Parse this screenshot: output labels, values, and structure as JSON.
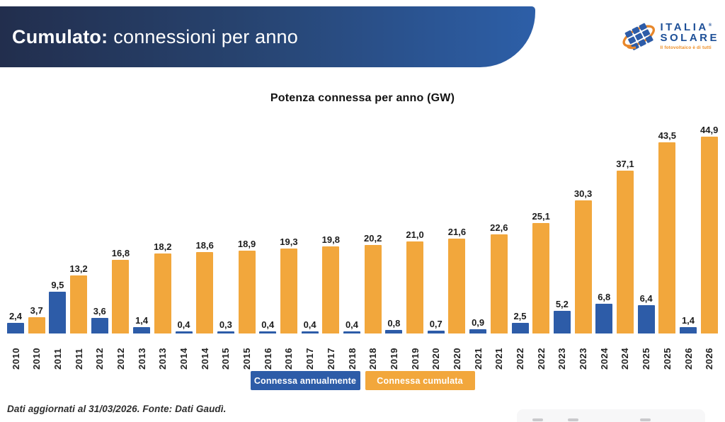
{
  "header": {
    "title_bold": "Cumulato:",
    "title_rest": "connessioni per anno",
    "logo": {
      "line1": "ITALIA",
      "registered": "®",
      "line2": "SOLARE",
      "tagline": "Il fotovoltaico è di tutti"
    }
  },
  "chart_data": {
    "type": "bar",
    "title": "Potenza connessa per anno (GW)",
    "categories": [
      2010,
      2011,
      2012,
      2013,
      2014,
      2015,
      2016,
      2017,
      2018,
      2019,
      2020,
      2021,
      2022,
      2023,
      2024,
      2025,
      2026
    ],
    "series": [
      {
        "name": "Connessa annualmente",
        "color": "#2d5ca8",
        "values": [
          2.4,
          9.5,
          3.6,
          1.4,
          0.4,
          0.3,
          0.4,
          0.4,
          0.4,
          0.8,
          0.7,
          0.9,
          2.5,
          5.2,
          6.8,
          6.4,
          1.4
        ]
      },
      {
        "name": "Connessa cumulata",
        "color": "#f2a73c",
        "values": [
          3.7,
          13.2,
          16.8,
          18.2,
          18.6,
          18.9,
          19.3,
          19.8,
          20.2,
          21.0,
          21.6,
          22.6,
          25.1,
          30.3,
          37.1,
          43.5,
          44.9
        ]
      }
    ],
    "ylim": [
      0,
      46
    ],
    "grid": false,
    "axis_lines": false,
    "value_labels": "above-bars, comma decimal separator",
    "x_tick_style": "rotated 90°, repeated per bar",
    "legend_position": "bottom-center"
  },
  "footer": {
    "note": "Dati aggiornati al 31/03/2026. Fonte: Dati Gaudì."
  },
  "colors": {
    "banner_gradient_left": "#222e4d",
    "banner_gradient_right": "#2d5fa8",
    "annual_blue": "#2d5ca8",
    "cumulative_orange": "#f2a73c",
    "logo_blue": "#1d4f97",
    "logo_orange": "#ee8d22"
  }
}
